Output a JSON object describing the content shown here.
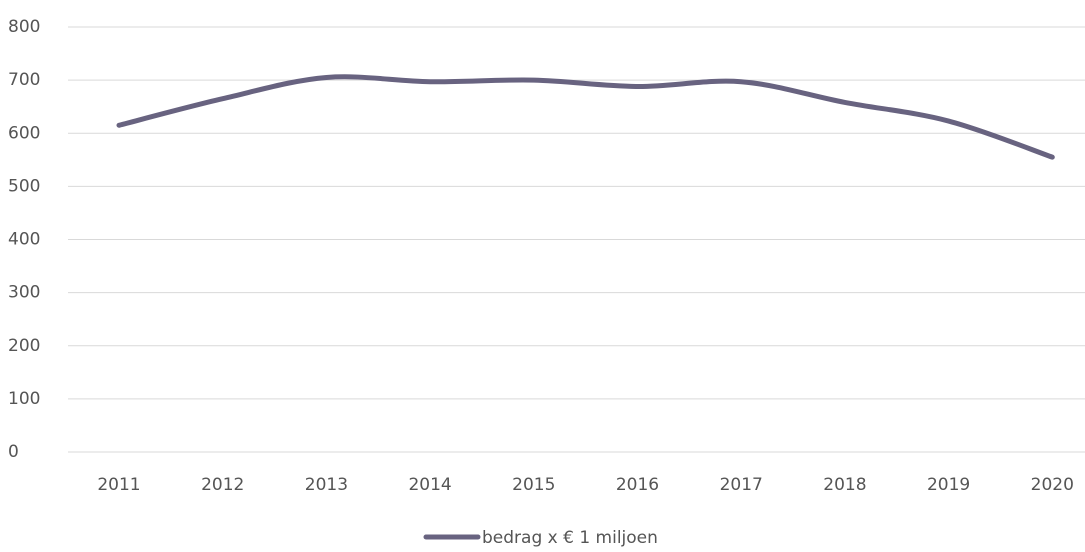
{
  "chart_data": {
    "type": "line",
    "categories": [
      "2011",
      "2012",
      "2013",
      "2014",
      "2015",
      "2016",
      "2017",
      "2018",
      "2019",
      "2020"
    ],
    "series": [
      {
        "name": "bedrag x € 1 miljoen",
        "color": "#686380",
        "values": [
          615,
          665,
          705,
          697,
          700,
          688,
          697,
          658,
          623,
          555
        ]
      }
    ],
    "ylim": [
      0,
      800
    ],
    "yticks": [
      0,
      100,
      200,
      300,
      400,
      500,
      600,
      700,
      800
    ],
    "grid": true,
    "legend": "bottom"
  }
}
